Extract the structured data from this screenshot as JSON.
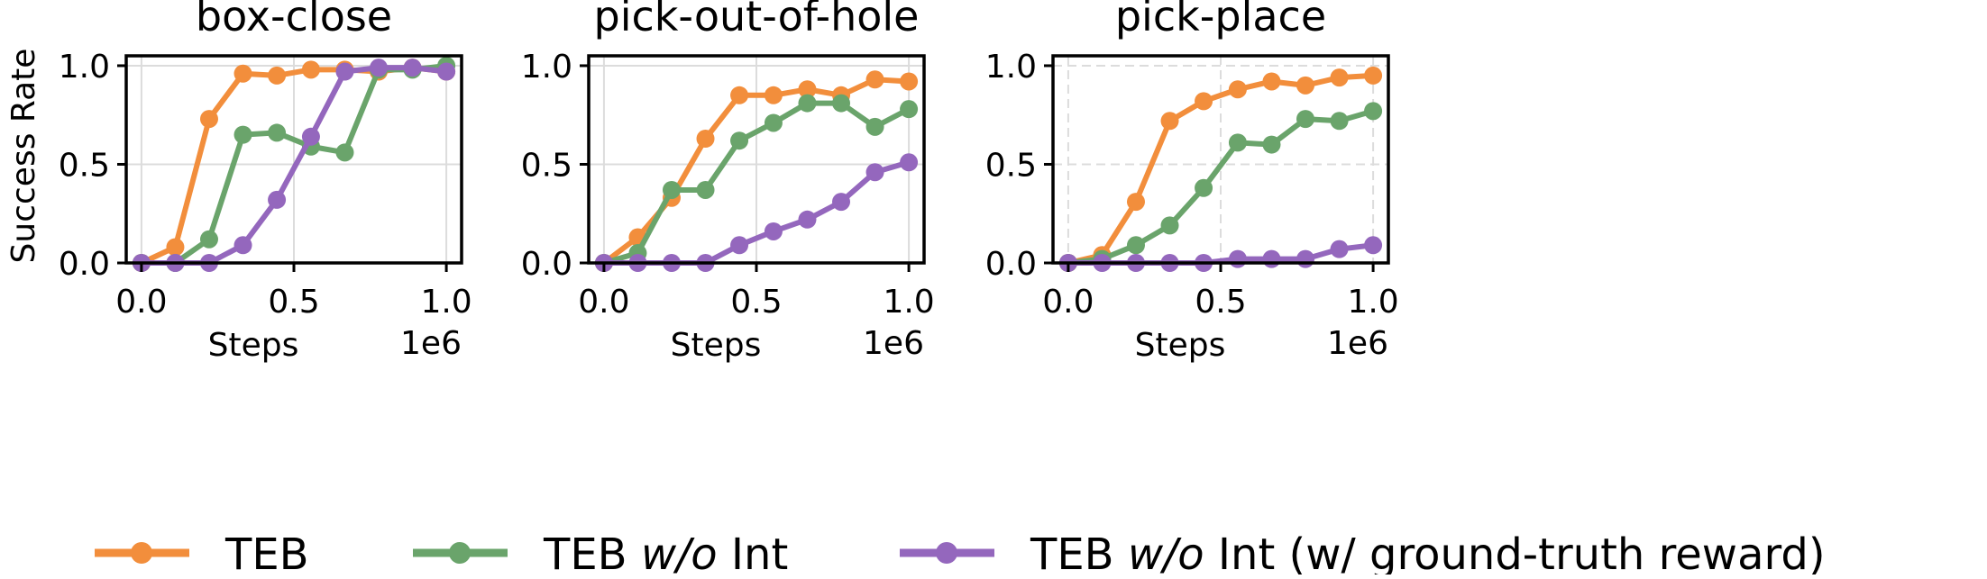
{
  "figure": {
    "legend": [
      {
        "label": "TEB",
        "italic": "",
        "suffix": ""
      },
      {
        "label": "TEB ",
        "italic": "w/o",
        "suffix": " Int"
      },
      {
        "label": "TEB ",
        "italic": "w/o",
        "suffix": " Int (w/ ground-truth reward)"
      }
    ],
    "colors": {
      "teb": "#f28e3c",
      "teb_wo_int": "#6aa46b",
      "teb_wo_int_gt": "#9467bd",
      "grid": "#dcdcdc"
    }
  },
  "chart_data": [
    {
      "type": "line",
      "title": "box-close",
      "xlabel": "Steps",
      "ylabel": "Success Rate",
      "x_exponent_label": "1e6",
      "xlim": [
        -0.05,
        1.05
      ],
      "ylim": [
        0.0,
        1.05
      ],
      "xticks": [
        0.0,
        0.5,
        1.0
      ],
      "xtick_labels": [
        "0.0",
        "0.5",
        "1.0"
      ],
      "yticks": [
        0.0,
        0.5,
        1.0
      ],
      "ytick_labels": [
        "0.0",
        "0.5",
        "1.0"
      ],
      "grid": "solid",
      "x": [
        0.0,
        0.111,
        0.222,
        0.333,
        0.444,
        0.556,
        0.667,
        0.778,
        0.889,
        1.0
      ],
      "series": [
        {
          "name": "TEB",
          "values": [
            0.0,
            0.08,
            0.73,
            0.96,
            0.95,
            0.98,
            0.98,
            0.97,
            0.99,
            0.97
          ]
        },
        {
          "name": "TEB w/o Int",
          "values": [
            0.0,
            0.0,
            0.12,
            0.65,
            0.66,
            0.59,
            0.56,
            0.98,
            0.98,
            1.0
          ]
        },
        {
          "name": "TEB w/o Int (w/ ground-truth reward)",
          "values": [
            0.0,
            0.0,
            0.0,
            0.09,
            0.32,
            0.64,
            0.97,
            0.99,
            0.99,
            0.97
          ]
        }
      ]
    },
    {
      "type": "line",
      "title": "pick-out-of-hole",
      "xlabel": "Steps",
      "ylabel": "",
      "x_exponent_label": "1e6",
      "xlim": [
        -0.05,
        1.05
      ],
      "ylim": [
        0.0,
        1.05
      ],
      "xticks": [
        0.0,
        0.5,
        1.0
      ],
      "xtick_labels": [
        "0.0",
        "0.5",
        "1.0"
      ],
      "yticks": [
        0.0,
        0.5,
        1.0
      ],
      "ytick_labels": [
        "0.0",
        "0.5",
        "1.0"
      ],
      "grid": "solid",
      "x": [
        0.0,
        0.111,
        0.222,
        0.333,
        0.444,
        0.556,
        0.667,
        0.778,
        0.889,
        1.0
      ],
      "series": [
        {
          "name": "TEB",
          "values": [
            0.0,
            0.13,
            0.33,
            0.63,
            0.85,
            0.85,
            0.88,
            0.85,
            0.93,
            0.92
          ]
        },
        {
          "name": "TEB w/o Int",
          "values": [
            0.0,
            0.05,
            0.37,
            0.37,
            0.62,
            0.71,
            0.81,
            0.81,
            0.69,
            0.78
          ]
        },
        {
          "name": "TEB w/o Int (w/ ground-truth reward)",
          "values": [
            0.0,
            0.0,
            0.0,
            0.0,
            0.09,
            0.16,
            0.22,
            0.31,
            0.46,
            0.51
          ]
        }
      ]
    },
    {
      "type": "line",
      "title": "pick-place",
      "xlabel": "Steps",
      "ylabel": "",
      "x_exponent_label": "1e6",
      "xlim": [
        -0.05,
        1.05
      ],
      "ylim": [
        0.0,
        1.05
      ],
      "xticks": [
        0.0,
        0.5,
        1.0
      ],
      "xtick_labels": [
        "0.0",
        "0.5",
        "1.0"
      ],
      "yticks": [
        0.0,
        0.5,
        1.0
      ],
      "ytick_labels": [
        "0.0",
        "0.5",
        "1.0"
      ],
      "grid": "dashed",
      "x": [
        0.0,
        0.111,
        0.222,
        0.333,
        0.444,
        0.556,
        0.667,
        0.778,
        0.889,
        1.0
      ],
      "series": [
        {
          "name": "TEB",
          "values": [
            0.0,
            0.04,
            0.31,
            0.72,
            0.82,
            0.88,
            0.92,
            0.9,
            0.94,
            0.95
          ]
        },
        {
          "name": "TEB w/o Int",
          "values": [
            0.0,
            0.02,
            0.09,
            0.19,
            0.38,
            0.61,
            0.6,
            0.73,
            0.72,
            0.77
          ]
        },
        {
          "name": "TEB w/o Int (w/ ground-truth reward)",
          "values": [
            0.0,
            0.0,
            0.0,
            0.0,
            0.0,
            0.02,
            0.02,
            0.02,
            0.07,
            0.09
          ]
        }
      ]
    }
  ]
}
